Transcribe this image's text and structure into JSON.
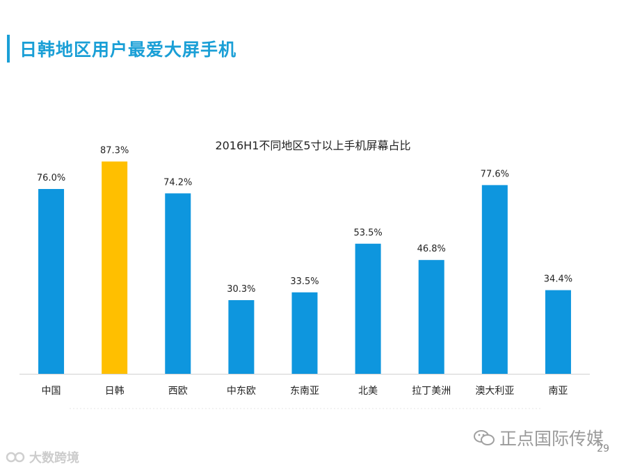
{
  "slide": {
    "title": "日韩地区用户最爱大屏手机",
    "page_number": "29",
    "watermark_text": "正点国际传媒",
    "watermark_icon": "wechat-icon",
    "bottom_logo_text": "大数跨境",
    "bottom_logo_icon": "brand-logo-icon",
    "accent_color": "#1a9fd6"
  },
  "chart_data": {
    "type": "bar",
    "title": "2016H1不同地区5寸以上手机屏幕占比",
    "categories": [
      "中国",
      "日韩",
      "西欧",
      "中东欧",
      "东南亚",
      "北美",
      "拉丁美洲",
      "澳大利亚",
      "南亚"
    ],
    "values": [
      76.0,
      87.3,
      74.2,
      30.3,
      33.5,
      53.5,
      46.8,
      77.6,
      34.4
    ],
    "value_labels": [
      "76.0%",
      "87.3%",
      "74.2%",
      "30.3%",
      "33.5%",
      "53.5%",
      "46.8%",
      "77.6%",
      "34.4%"
    ],
    "highlight_index": 1,
    "bar_color": "#0e96de",
    "highlight_color": "#ffbf00",
    "xlabel": "",
    "ylabel": "",
    "ylim": [
      0,
      100
    ],
    "grid": false
  }
}
